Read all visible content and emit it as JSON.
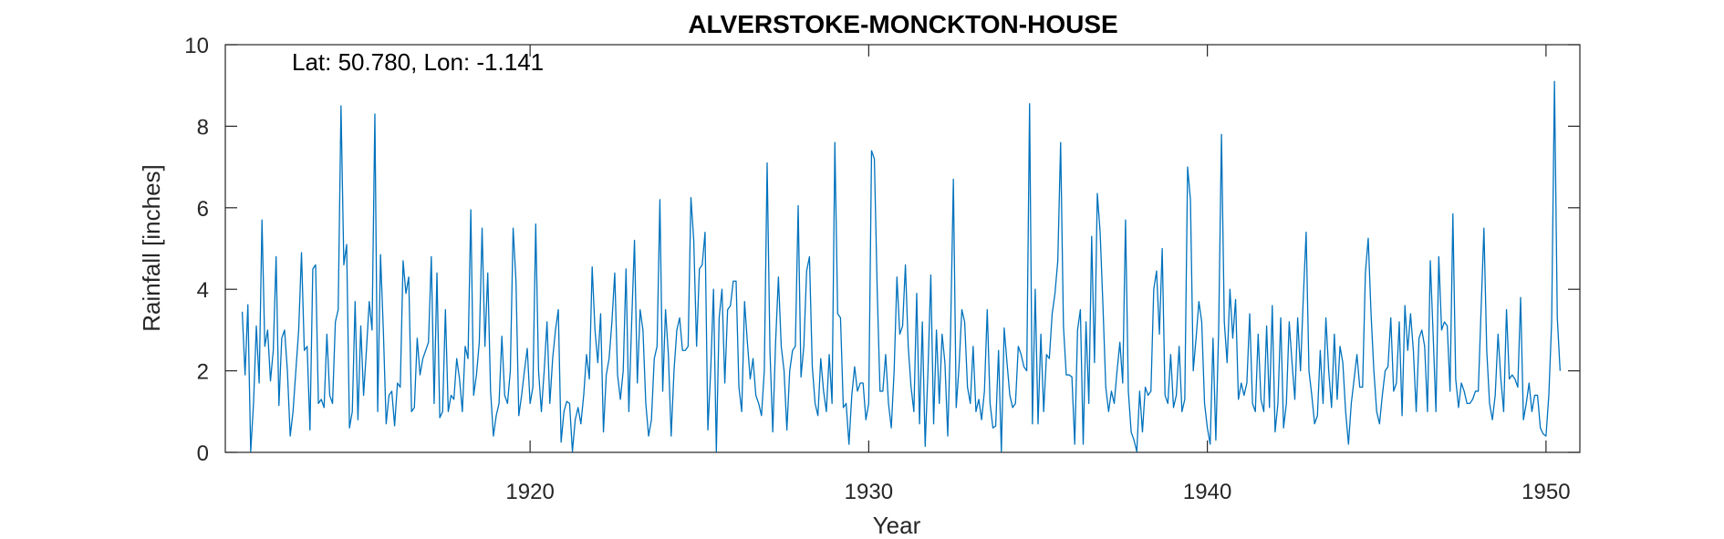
{
  "chart_data": {
    "type": "line",
    "title": "ALVERSTOKE-MONCKTON-HOUSE",
    "annotation": "Lat: 50.780, Lon: -1.141",
    "xlabel": "Year",
    "ylabel": "Rainfall [inches]",
    "xlim": [
      1911.0,
      1951.0
    ],
    "ylim": [
      0,
      10
    ],
    "xticks": [
      1920,
      1930,
      1940,
      1950
    ],
    "yticks": [
      0,
      2,
      4,
      6,
      8,
      10
    ],
    "grid": false,
    "line_color": "#0072BD",
    "series": [
      {
        "start_year": 1911.5,
        "step_years": 0.083333,
        "values": [
          3.45,
          1.9,
          3.62,
          0.02,
          1.2,
          3.1,
          1.7,
          5.7,
          2.6,
          3.0,
          1.75,
          2.5,
          4.8,
          1.15,
          2.8,
          3.0,
          2.0,
          0.4,
          1.0,
          2.0,
          3.0,
          4.9,
          2.5,
          2.6,
          0.55,
          4.5,
          4.6,
          1.2,
          1.3,
          1.1,
          2.9,
          1.4,
          1.2,
          3.2,
          3.5,
          8.5,
          4.6,
          5.1,
          0.6,
          1.0,
          3.7,
          0.8,
          3.1,
          1.4,
          2.5,
          3.7,
          3.0,
          8.3,
          1.0,
          4.85,
          3.0,
          0.7,
          1.4,
          1.5,
          0.65,
          1.7,
          1.6,
          4.7,
          3.9,
          4.3,
          1.0,
          1.1,
          2.8,
          1.9,
          2.3,
          2.5,
          2.7,
          4.8,
          1.2,
          4.4,
          0.85,
          1.0,
          3.5,
          1.0,
          1.4,
          1.3,
          2.3,
          1.8,
          1.0,
          2.6,
          2.3,
          5.95,
          1.4,
          1.9,
          2.7,
          5.5,
          2.6,
          4.4,
          1.5,
          0.4,
          0.9,
          1.2,
          2.85,
          1.4,
          1.2,
          2.0,
          5.5,
          4.2,
          0.9,
          1.4,
          2.0,
          2.55,
          1.2,
          1.6,
          5.6,
          2.0,
          1.0,
          2.0,
          3.2,
          1.2,
          2.3,
          3.0,
          3.5,
          0.25,
          1.0,
          1.25,
          1.2,
          0.02,
          0.8,
          1.1,
          0.7,
          1.4,
          2.4,
          1.8,
          4.55,
          3.0,
          2.2,
          3.4,
          0.5,
          1.9,
          2.3,
          3.2,
          4.4,
          1.9,
          1.3,
          2.0,
          4.5,
          1.0,
          3.2,
          5.2,
          1.7,
          3.5,
          3.0,
          1.2,
          0.4,
          0.8,
          2.3,
          2.6,
          6.2,
          1.5,
          3.5,
          2.4,
          0.4,
          2.0,
          3.0,
          3.3,
          2.5,
          2.5,
          2.6,
          6.25,
          5.2,
          2.6,
          4.5,
          4.6,
          5.4,
          0.55,
          2.0,
          4.0,
          0.02,
          3.3,
          4.0,
          1.7,
          3.5,
          3.6,
          4.2,
          4.2,
          1.6,
          1.0,
          3.7,
          2.7,
          1.8,
          2.3,
          1.4,
          1.2,
          0.9,
          2.0,
          7.1,
          2.5,
          0.5,
          2.7,
          4.3,
          2.6,
          2.0,
          0.55,
          2.0,
          2.5,
          2.6,
          6.05,
          1.85,
          2.6,
          4.45,
          4.8,
          2.1,
          1.2,
          0.9,
          2.3,
          1.5,
          1.0,
          2.4,
          1.2,
          7.6,
          3.4,
          3.3,
          1.1,
          1.2,
          0.2,
          1.4,
          2.1,
          1.5,
          1.7,
          1.7,
          0.8,
          1.2,
          7.4,
          7.2,
          4.0,
          1.5,
          1.5,
          2.4,
          1.2,
          0.6,
          2.0,
          4.3,
          2.9,
          3.1,
          4.6,
          2.6,
          1.6,
          1.0,
          3.9,
          0.7,
          3.2,
          0.15,
          2.0,
          4.35,
          0.7,
          3.0,
          1.2,
          2.9,
          2.2,
          0.4,
          2.9,
          6.7,
          1.1,
          2.1,
          3.5,
          3.2,
          1.6,
          1.2,
          2.6,
          1.0,
          1.3,
          0.8,
          1.5,
          3.5,
          1.2,
          0.6,
          0.65,
          2.5,
          0.02,
          3.05,
          2.2,
          1.4,
          1.1,
          1.2,
          2.6,
          2.4,
          2.1,
          2.0,
          8.55,
          0.7,
          4.0,
          0.7,
          2.9,
          1.0,
          2.4,
          2.3,
          3.4,
          3.9,
          4.7,
          7.6,
          3.1,
          1.9,
          1.9,
          1.85,
          0.2,
          3.0,
          3.5,
          0.2,
          3.2,
          1.2,
          5.3,
          2.2,
          6.35,
          5.4,
          3.6,
          1.6,
          1.0,
          1.5,
          1.2,
          2.0,
          2.7,
          1.7,
          5.7,
          1.5,
          0.5,
          0.3,
          0.02,
          1.5,
          0.5,
          1.6,
          1.4,
          1.5,
          4.0,
          4.45,
          2.9,
          5.0,
          1.4,
          1.2,
          2.4,
          1.1,
          1.4,
          2.6,
          1.0,
          1.3,
          7.0,
          6.2,
          2.0,
          2.8,
          3.7,
          3.2,
          1.2,
          0.6,
          0.2,
          2.8,
          0.3,
          3.0,
          7.8,
          3.2,
          2.2,
          4.0,
          2.8,
          3.75,
          1.3,
          1.7,
          1.4,
          1.7,
          3.4,
          1.2,
          1.0,
          2.9,
          1.3,
          1.0,
          3.1,
          1.1,
          3.6,
          0.5,
          1.2,
          3.3,
          0.6,
          1.2,
          3.2,
          2.2,
          1.3,
          3.3,
          2.0,
          3.8,
          5.4,
          2.0,
          1.4,
          0.7,
          0.9,
          2.5,
          1.2,
          3.3,
          2.0,
          1.1,
          2.9,
          1.3,
          2.6,
          2.2,
          1.0,
          0.2,
          1.2,
          1.8,
          2.4,
          1.6,
          1.6,
          4.4,
          5.25,
          3.4,
          2.0,
          1.0,
          0.7,
          1.4,
          2.0,
          2.1,
          3.3,
          1.5,
          1.7,
          3.2,
          0.9,
          3.6,
          2.5,
          3.4,
          2.5,
          1.0,
          2.8,
          3.0,
          2.6,
          1.0,
          4.7,
          2.9,
          1.0,
          4.8,
          3.0,
          3.2,
          3.1,
          1.5,
          5.85,
          1.8,
          1.1,
          1.7,
          1.5,
          1.2,
          1.2,
          1.3,
          1.5,
          1.5,
          3.5,
          5.5,
          2.5,
          1.2,
          0.8,
          1.4,
          2.9,
          1.8,
          1.0,
          3.5,
          1.8,
          1.9,
          1.8,
          1.6,
          3.8,
          0.8,
          1.2,
          1.7,
          1.0,
          1.4,
          1.4,
          0.6,
          0.45,
          0.4,
          1.4,
          3.2,
          9.1,
          3.3,
          2.0
        ]
      }
    ]
  }
}
